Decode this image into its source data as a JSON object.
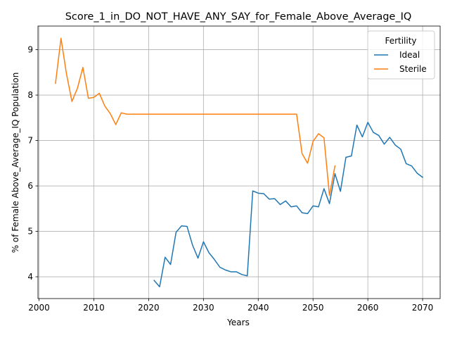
{
  "chart_data": {
    "type": "line",
    "title": "Score_1_in_DO_NOT_HAVE_ANY_SAY_for_Female_Above_Average_IQ",
    "xlabel": "Years",
    "ylabel": "% of Female Above_Average_IQ Population",
    "xlim": [
      1999.8,
      2073.2
    ],
    "ylim": [
      3.52,
      9.52
    ],
    "xticks": [
      2000,
      2010,
      2020,
      2030,
      2040,
      2050,
      2060,
      2070
    ],
    "yticks": [
      4,
      5,
      6,
      7,
      8,
      9
    ],
    "grid": true,
    "legend": {
      "title": "Fertility",
      "placement": "top-right"
    },
    "series": [
      {
        "name": "Ideal",
        "color": "#1f77b4",
        "x": [
          2021,
          2022,
          2023,
          2024,
          2025,
          2026,
          2027,
          2028,
          2029,
          2030,
          2031,
          2032,
          2033,
          2034,
          2035,
          2036,
          2037,
          2038,
          2039,
          2040,
          2041,
          2042,
          2043,
          2044,
          2045,
          2046,
          2047,
          2048,
          2049,
          2050,
          2051,
          2052,
          2053,
          2054,
          2055,
          2056,
          2057,
          2058,
          2059,
          2060,
          2061,
          2062,
          2063,
          2064,
          2065,
          2066,
          2067,
          2068,
          2069,
          2070
        ],
        "y": [
          3.92,
          3.78,
          4.43,
          4.27,
          4.98,
          5.12,
          5.11,
          4.7,
          4.41,
          4.77,
          4.53,
          4.38,
          4.21,
          4.15,
          4.11,
          4.11,
          4.05,
          4.02,
          5.89,
          5.84,
          5.83,
          5.71,
          5.72,
          5.59,
          5.67,
          5.54,
          5.56,
          5.41,
          5.39,
          5.56,
          5.54,
          5.94,
          5.61,
          6.27,
          5.88,
          6.63,
          6.66,
          7.34,
          7.08,
          7.4,
          7.18,
          7.11,
          6.92,
          7.07,
          6.9,
          6.81,
          6.49,
          6.44,
          6.28,
          6.19
        ]
      },
      {
        "name": "Sterile",
        "color": "#ff7f0e",
        "x": [
          2003,
          2004,
          2005,
          2006,
          2007,
          2008,
          2009,
          2010,
          2011,
          2012,
          2013,
          2014,
          2015,
          2016,
          2017,
          2018,
          2019,
          2020,
          2021,
          2022,
          2023,
          2024,
          2025,
          2026,
          2027,
          2028,
          2029,
          2030,
          2031,
          2032,
          2033,
          2034,
          2035,
          2036,
          2037,
          2038,
          2039,
          2040,
          2041,
          2042,
          2043,
          2044,
          2045,
          2046,
          2047,
          2048,
          2049,
          2050,
          2051,
          2052,
          2053,
          2054
        ],
        "y": [
          8.26,
          9.25,
          8.47,
          7.86,
          8.15,
          8.61,
          7.93,
          7.95,
          8.04,
          7.76,
          7.59,
          7.35,
          7.61,
          7.58,
          7.58,
          7.58,
          7.58,
          7.58,
          7.58,
          7.58,
          7.58,
          7.58,
          7.58,
          7.58,
          7.58,
          7.58,
          7.58,
          7.58,
          7.58,
          7.58,
          7.58,
          7.58,
          7.58,
          7.58,
          7.58,
          7.58,
          7.58,
          7.58,
          7.58,
          7.58,
          7.58,
          7.58,
          7.58,
          7.58,
          7.58,
          6.71,
          6.5,
          6.98,
          7.15,
          7.06,
          5.79,
          6.44
        ]
      }
    ]
  }
}
